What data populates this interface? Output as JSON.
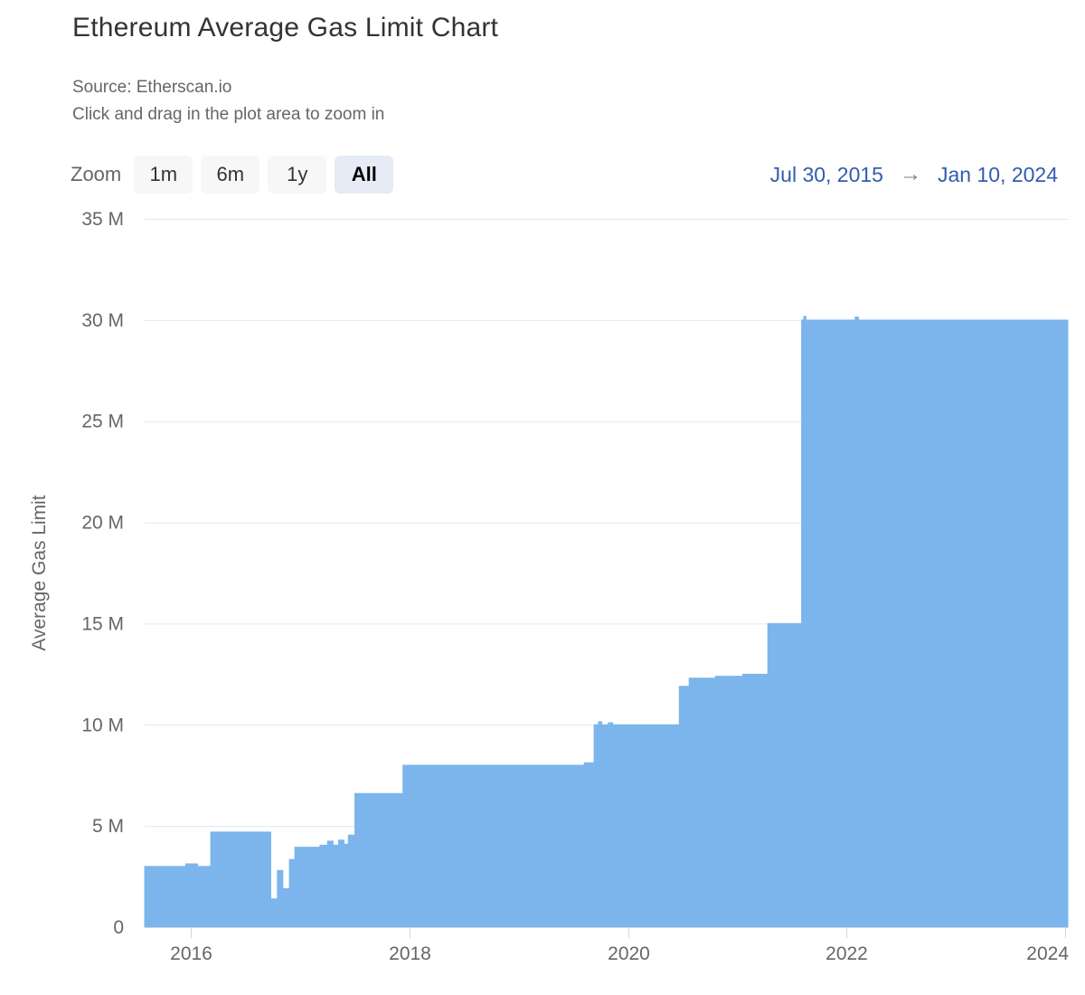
{
  "header": {
    "title": "Ethereum Average Gas Limit Chart",
    "subtitle_source": "Source: Etherscan.io",
    "subtitle_hint": "Click and drag in the plot area to zoom in"
  },
  "toolbar": {
    "zoom_label": "Zoom",
    "buttons": [
      {
        "label": "1m",
        "selected": false
      },
      {
        "label": "6m",
        "selected": false
      },
      {
        "label": "1y",
        "selected": false
      },
      {
        "label": "All",
        "selected": true
      }
    ],
    "range": {
      "from": "Jul 30, 2015",
      "arrow": "→",
      "to": "Jan 10, 2024"
    }
  },
  "chart_data": {
    "type": "area",
    "title": "Ethereum Average Gas Limit Chart",
    "ylabel": "Average Gas Limit",
    "xlabel": "",
    "x_unit": "year (decimal)",
    "y_unit": "gas limit (millions)",
    "xlim": [
      2015.575,
      2024.027
    ],
    "ylim": [
      0,
      35
    ],
    "grid": "horizontal",
    "legend": "none",
    "yticks": [
      {
        "value": 0,
        "label": "0"
      },
      {
        "value": 5,
        "label": "5 M"
      },
      {
        "value": 10,
        "label": "10 M"
      },
      {
        "value": 15,
        "label": "15 M"
      },
      {
        "value": 20,
        "label": "20 M"
      },
      {
        "value": 25,
        "label": "25 M"
      },
      {
        "value": 30,
        "label": "30 M"
      },
      {
        "value": 35,
        "label": "35 M"
      }
    ],
    "xticks": [
      {
        "value": 2016,
        "label": "2016"
      },
      {
        "value": 2018,
        "label": "2018"
      },
      {
        "value": 2020,
        "label": "2020"
      },
      {
        "value": 2022,
        "label": "2022"
      },
      {
        "value": 2024,
        "label": "2024"
      }
    ],
    "series": [
      {
        "name": "Average Gas Limit",
        "color": "#7cb5ec",
        "step": "after",
        "points": [
          [
            2015.575,
            3.0
          ],
          [
            2015.95,
            3.13
          ],
          [
            2016.06,
            3.0
          ],
          [
            2016.18,
            4.7
          ],
          [
            2016.73,
            1.4
          ],
          [
            2016.79,
            2.8
          ],
          [
            2016.84,
            1.9
          ],
          [
            2016.9,
            3.35
          ],
          [
            2016.95,
            3.95
          ],
          [
            2017.18,
            4.05
          ],
          [
            2017.25,
            4.25
          ],
          [
            2017.3,
            4.05
          ],
          [
            2017.35,
            4.3
          ],
          [
            2017.4,
            4.1
          ],
          [
            2017.44,
            4.55
          ],
          [
            2017.5,
            6.6
          ],
          [
            2017.94,
            8.0
          ],
          [
            2019.6,
            8.12
          ],
          [
            2019.69,
            10.0
          ],
          [
            2019.73,
            10.15
          ],
          [
            2019.76,
            10.0
          ],
          [
            2019.82,
            10.1
          ],
          [
            2019.86,
            10.0
          ],
          [
            2020.47,
            11.9
          ],
          [
            2020.56,
            12.3
          ],
          [
            2020.8,
            12.4
          ],
          [
            2021.05,
            12.5
          ],
          [
            2021.28,
            15.0
          ],
          [
            2021.59,
            30.0
          ],
          [
            2021.61,
            30.18
          ],
          [
            2021.63,
            30.0
          ],
          [
            2022.08,
            30.15
          ],
          [
            2022.11,
            30.0
          ],
          [
            2024.027,
            30.0
          ]
        ]
      }
    ]
  },
  "colors": {
    "area": "#7cb5ec",
    "gridline": "#e6e6e6",
    "axis_line": "#ccd6eb",
    "axis_label": "#666666",
    "title": "#333333",
    "subtitle": "#666666",
    "range_link": "#335cad",
    "button_bg": "#f7f7f7",
    "button_selected_bg": "#e6ebf5"
  }
}
